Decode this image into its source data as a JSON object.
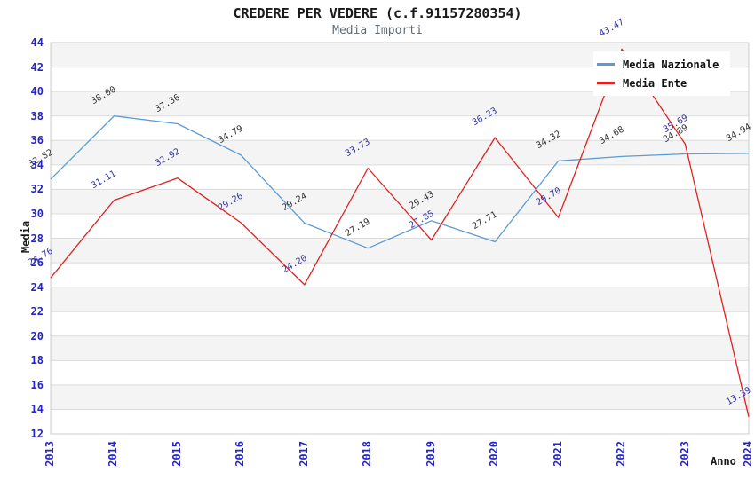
{
  "chart_data": {
    "type": "line",
    "title": "CREDERE PER VEDERE (c.f.91157280354)",
    "subtitle": "Media Importi",
    "xlabel": "Anno",
    "ylabel": "Media",
    "ylim": [
      12,
      44
    ],
    "y_tick_step": 2,
    "grid": true,
    "banded_background": true,
    "legend_position": "top-right",
    "categories": [
      "2013",
      "2014",
      "2015",
      "2016",
      "2017",
      "2018",
      "2019",
      "2020",
      "2021",
      "2022",
      "2023",
      "2024"
    ],
    "series": [
      {
        "name": "Media Nazionale",
        "color": "#5b9bd5",
        "label_color": "#333333",
        "values": [
          32.82,
          38.0,
          37.36,
          34.79,
          29.24,
          27.19,
          29.43,
          27.71,
          34.32,
          34.68,
          34.89,
          34.94
        ]
      },
      {
        "name": "Media Ente",
        "color": "#e02020",
        "label_color": "#3333a6",
        "values": [
          24.76,
          31.11,
          32.92,
          29.26,
          24.2,
          33.73,
          27.85,
          36.23,
          29.7,
          43.47,
          35.69,
          13.39
        ]
      }
    ],
    "colors": {
      "axis_tick_text": "#2424c8",
      "band_fill": "#f4f4f4",
      "grid_line": "#dcdcdc",
      "plot_border": "#cccccc"
    }
  }
}
